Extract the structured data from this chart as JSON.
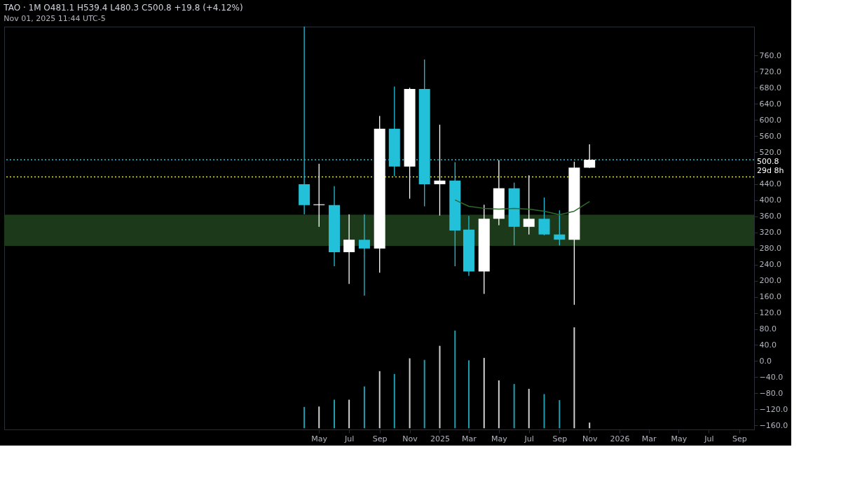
{
  "chart_data": {
    "type": "candlestick",
    "title": "TAO · 1M  O481.1  H539.4  L480.3  C500.8  +19.8 (+4.12%)",
    "subtitle": "Nov 01, 2025 11:44 UTC-5",
    "x": [
      "2024-04",
      "2024-05",
      "2024-06",
      "2024-07",
      "2024-08",
      "2024-09",
      "2024-10",
      "2024-11",
      "2024-12",
      "2025-01",
      "2025-02",
      "2025-03",
      "2025-04",
      "2025-05",
      "2025-06",
      "2025-07",
      "2025-08",
      "2025-09",
      "2025-10",
      "2025-11"
    ],
    "ohlc": [
      [
        440,
        832,
        365,
        388
      ],
      [
        388,
        491,
        334,
        390
      ],
      [
        388,
        435,
        236,
        271
      ],
      [
        271,
        365,
        192,
        302
      ],
      [
        302,
        365,
        163,
        280
      ],
      [
        280,
        610,
        220,
        578
      ],
      [
        578,
        683,
        460,
        484
      ],
      [
        484,
        680,
        404,
        677
      ],
      [
        677,
        750,
        385,
        440
      ],
      [
        440,
        588,
        362,
        449
      ],
      [
        449,
        495,
        236,
        325
      ],
      [
        327,
        361,
        212,
        223
      ],
      [
        223,
        389,
        167,
        354
      ],
      [
        354,
        500,
        338,
        430
      ],
      [
        430,
        444,
        288,
        334
      ],
      [
        334,
        462,
        315,
        354
      ],
      [
        354,
        407,
        313,
        315
      ],
      [
        315,
        375,
        288,
        302
      ],
      [
        302,
        496,
        140,
        481.1
      ],
      [
        481.1,
        539.4,
        480.3,
        500.8
      ]
    ],
    "colors": [
      "#22c1d9",
      "#ffffff",
      "#22c1d9",
      "#ffffff",
      "#22c1d9",
      "#ffffff",
      "#22c1d9",
      "#ffffff",
      "#22c1d9",
      "#ffffff",
      "#22c1d9",
      "#22c1d9",
      "#ffffff",
      "#ffffff",
      "#22c1d9",
      "#ffffff",
      "#22c1d9",
      "#22c1d9",
      "#ffffff",
      "#ffffff"
    ],
    "series": [
      {
        "type": "line",
        "color": "#2f6b2f",
        "x": [
          "2025-02",
          "2025-03",
          "2025-04",
          "2025-05",
          "2025-06",
          "2025-07",
          "2025-08",
          "2025-09",
          "2025-10",
          "2025-11"
        ],
        "values": [
          401,
          385,
          380,
          378,
          380,
          378,
          373,
          364,
          373,
          397
        ]
      },
      {
        "type": "bar",
        "base": [
          -167,
          -167,
          -167,
          -167,
          -167,
          -167,
          -167,
          -167,
          -167,
          -167,
          -167,
          -167,
          -167,
          -167,
          -167,
          -167,
          -167,
          -167,
          -167,
          -167
        ],
        "values": [
          53,
          54,
          71,
          71,
          104,
          142,
          135,
          174,
          170,
          205,
          243,
          169,
          175,
          119,
          110,
          98,
          85,
          70,
          251,
          14
        ],
        "colors": [
          "#1f9fb2",
          "#d0d0d0",
          "#1f9fb2",
          "#d0d0d0",
          "#1f9fb2",
          "#d0d0d0",
          "#1f9fb2",
          "#d0d0d0",
          "#1f9fb2",
          "#d0d0d0",
          "#1f9fb2",
          "#1f9fb2",
          "#d0d0d0",
          "#d0d0d0",
          "#1f9fb2",
          "#d0d0d0",
          "#1f9fb2",
          "#1f9fb2",
          "#d0d0d0",
          "#d0d0d0"
        ]
      }
    ],
    "bands": [
      {
        "axis": "y",
        "from": 286.5,
        "to": 364,
        "color": "#1c3a1a"
      }
    ],
    "ref_lines": [
      {
        "axis": "y",
        "value": 500.8,
        "label": "500.8\n29d 8h",
        "color": "#22c1d9",
        "line_style": "dotted"
      },
      {
        "axis": "y",
        "value": 458,
        "color": "#e0e040",
        "line_style": "dotted"
      }
    ],
    "xlim": [
      "2022-08-01",
      "2026-10-01"
    ],
    "xticks": [
      {
        "value": "2024-05",
        "label": "May"
      },
      {
        "value": "2024-07",
        "label": "Jul"
      },
      {
        "value": "2024-09",
        "label": "Sep"
      },
      {
        "value": "2024-11",
        "label": "Nov"
      },
      {
        "value": "2025-01",
        "label": "2025"
      },
      {
        "value": "2025-03",
        "label": "Mar"
      },
      {
        "value": "2025-05",
        "label": "May"
      },
      {
        "value": "2025-07",
        "label": "Jul"
      },
      {
        "value": "2025-09",
        "label": "Sep"
      },
      {
        "value": "2025-11",
        "label": "Nov"
      },
      {
        "value": "2026-01",
        "label": "2026"
      },
      {
        "value": "2026-03",
        "label": "Mar"
      },
      {
        "value": "2026-05",
        "label": "May"
      },
      {
        "value": "2026-07",
        "label": "Jul"
      },
      {
        "value": "2026-09",
        "label": "Sep"
      }
    ],
    "ylim": [
      -170,
      832
    ],
    "yticks": [
      {
        "value": 760,
        "label": "760.0"
      },
      {
        "value": 720,
        "label": "720.0"
      },
      {
        "value": 680,
        "label": "680.0"
      },
      {
        "value": 640,
        "label": "640.0"
      },
      {
        "value": 600,
        "label": "600.0"
      },
      {
        "value": 560,
        "label": "560.0"
      },
      {
        "value": 520,
        "label": "520.0"
      },
      {
        "value": 440,
        "label": "440.0"
      },
      {
        "value": 400,
        "label": "400.0"
      },
      {
        "value": 360,
        "label": "360.0"
      },
      {
        "value": 320,
        "label": "320.0"
      },
      {
        "value": 280,
        "label": "280.0"
      },
      {
        "value": 240,
        "label": "240.0"
      },
      {
        "value": 200,
        "label": "200.0"
      },
      {
        "value": 160,
        "label": "160.0"
      },
      {
        "value": 120,
        "label": "120.0"
      },
      {
        "value": 80,
        "label": "80.0"
      },
      {
        "value": 40,
        "label": "40.0"
      },
      {
        "value": 0,
        "label": "0.0"
      },
      {
        "value": -40,
        "label": "−40.0"
      },
      {
        "value": -80,
        "label": "−80.0"
      },
      {
        "value": -120,
        "label": "−120.0"
      },
      {
        "value": -160,
        "label": "−160.0"
      }
    ],
    "grid": false
  }
}
